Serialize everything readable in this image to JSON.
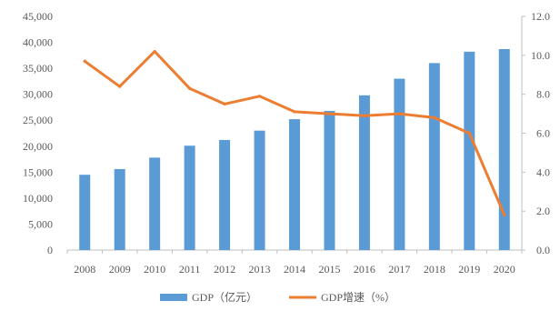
{
  "chart_data": {
    "type": "bar",
    "categories": [
      "2008",
      "2009",
      "2010",
      "2011",
      "2012",
      "2013",
      "2014",
      "2015",
      "2016",
      "2017",
      "2018",
      "2019",
      "2020"
    ],
    "series": [
      {
        "name": "GDP（亿元）",
        "type": "bar",
        "axis": "left",
        "color": "#5B9BD5",
        "values": [
          14500,
          15600,
          17800,
          20100,
          21200,
          23000,
          25200,
          26800,
          29800,
          33000,
          36000,
          38200,
          38700
        ]
      },
      {
        "name": "GDP增速（%）",
        "type": "line",
        "axis": "right",
        "color": "#ED7D31",
        "values": [
          9.7,
          8.4,
          10.2,
          8.3,
          7.5,
          7.9,
          7.1,
          7.0,
          6.9,
          7.0,
          6.8,
          6.0,
          1.8
        ]
      }
    ],
    "y_left": {
      "min": 0,
      "max": 45000,
      "tick_labels": [
        "0",
        "5,000",
        "10,000",
        "15,000",
        "20,000",
        "25,000",
        "30,000",
        "35,000",
        "40,000",
        "45,000"
      ]
    },
    "y_right": {
      "min": 0,
      "max": 12,
      "tick_labels": [
        "0.0",
        "2.0",
        "4.0",
        "6.0",
        "8.0",
        "10.0",
        "12.0"
      ]
    },
    "grid": false,
    "legend_position": "bottom"
  }
}
